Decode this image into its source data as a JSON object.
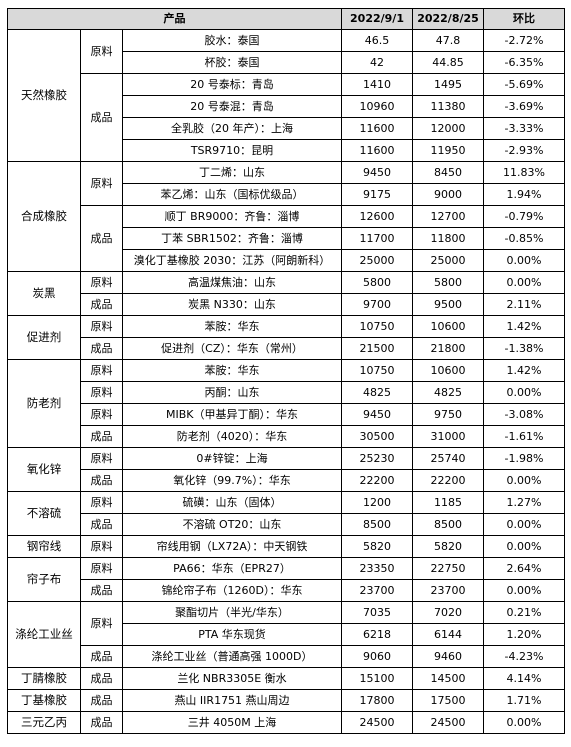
{
  "headers": [
    "产品",
    "2022/9/1",
    "2022/8/25",
    "环比"
  ],
  "groups": [
    {
      "category": "天然橡胶",
      "subs": [
        {
          "type": "原料",
          "rows": [
            {
              "name": "胶水：泰国",
              "v1": "46.5",
              "v2": "47.8",
              "chg": "-2.72%"
            },
            {
              "name": "杯胶：泰国",
              "v1": "42",
              "v2": "44.85",
              "chg": "-6.35%"
            }
          ]
        },
        {
          "type": "成品",
          "rows": [
            {
              "name": "20 号泰标：青岛",
              "v1": "1410",
              "v2": "1495",
              "chg": "-5.69%"
            },
            {
              "name": "20 号泰混：青岛",
              "v1": "10960",
              "v2": "11380",
              "chg": "-3.69%"
            },
            {
              "name": "全乳胶（20 年产）：上海",
              "v1": "11600",
              "v2": "12000",
              "chg": "-3.33%"
            },
            {
              "name": "TSR9710：昆明",
              "v1": "11600",
              "v2": "11950",
              "chg": "-2.93%"
            }
          ]
        }
      ]
    },
    {
      "category": "合成橡胶",
      "subs": [
        {
          "type": "原料",
          "rows": [
            {
              "name": "丁二烯：山东",
              "v1": "9450",
              "v2": "8450",
              "chg": "11.83%"
            },
            {
              "name": "苯乙烯：山东（国标优级品）",
              "v1": "9175",
              "v2": "9000",
              "chg": "1.94%"
            }
          ]
        },
        {
          "type": "成品",
          "rows": [
            {
              "name": "顺丁 BR9000：齐鲁：淄博",
              "v1": "12600",
              "v2": "12700",
              "chg": "-0.79%"
            },
            {
              "name": "丁苯 SBR1502：齐鲁：淄博",
              "v1": "11700",
              "v2": "11800",
              "chg": "-0.85%"
            },
            {
              "name": "溴化丁基橡胶 2030：江苏（阿朗新科）",
              "v1": "25000",
              "v2": "25000",
              "chg": "0.00%"
            }
          ]
        }
      ]
    },
    {
      "category": "炭黑",
      "subs": [
        {
          "type": "原料",
          "rows": [
            {
              "name": "高温煤焦油：山东",
              "v1": "5800",
              "v2": "5800",
              "chg": "0.00%"
            }
          ]
        },
        {
          "type": "成品",
          "rows": [
            {
              "name": "炭黑 N330：山东",
              "v1": "9700",
              "v2": "9500",
              "chg": "2.11%"
            }
          ]
        }
      ]
    },
    {
      "category": "促进剂",
      "subs": [
        {
          "type": "原料",
          "rows": [
            {
              "name": "苯胺：华东",
              "v1": "10750",
              "v2": "10600",
              "chg": "1.42%"
            }
          ]
        },
        {
          "type": "成品",
          "rows": [
            {
              "name": "促进剂（CZ）：华东（常州）",
              "v1": "21500",
              "v2": "21800",
              "chg": "-1.38%"
            }
          ]
        }
      ]
    },
    {
      "category": "防老剂",
      "subs": [
        {
          "type": "原料",
          "rows": [
            {
              "name": "苯胺：华东",
              "v1": "10750",
              "v2": "10600",
              "chg": "1.42%"
            }
          ]
        },
        {
          "type": "原料",
          "rows": [
            {
              "name": "丙酮：山东",
              "v1": "4825",
              "v2": "4825",
              "chg": "0.00%"
            }
          ]
        },
        {
          "type": "原料",
          "rows": [
            {
              "name": "MIBK（甲基异丁酮）：华东",
              "v1": "9450",
              "v2": "9750",
              "chg": "-3.08%"
            }
          ]
        },
        {
          "type": "成品",
          "rows": [
            {
              "name": "防老剂（4020）：华东",
              "v1": "30500",
              "v2": "31000",
              "chg": "-1.61%"
            }
          ]
        }
      ]
    },
    {
      "category": "氧化锌",
      "subs": [
        {
          "type": "原料",
          "rows": [
            {
              "name": "0#锌锭：上海",
              "v1": "25230",
              "v2": "25740",
              "chg": "-1.98%"
            }
          ]
        },
        {
          "type": "成品",
          "rows": [
            {
              "name": "氧化锌（99.7%）：华东",
              "v1": "22200",
              "v2": "22200",
              "chg": "0.00%"
            }
          ]
        }
      ]
    },
    {
      "category": "不溶硫",
      "subs": [
        {
          "type": "原料",
          "rows": [
            {
              "name": "硫磺：山东（固体）",
              "v1": "1200",
              "v2": "1185",
              "chg": "1.27%"
            }
          ]
        },
        {
          "type": "成品",
          "rows": [
            {
              "name": "不溶硫 OT20：山东",
              "v1": "8500",
              "v2": "8500",
              "chg": "0.00%"
            }
          ]
        }
      ]
    },
    {
      "category": "钢帘线",
      "subs": [
        {
          "type": "原料",
          "rows": [
            {
              "name": "帘线用钢（LX72A）：中天钢铁",
              "v1": "5820",
              "v2": "5820",
              "chg": "0.00%"
            }
          ]
        }
      ]
    },
    {
      "category": "帘子布",
      "subs": [
        {
          "type": "原料",
          "rows": [
            {
              "name": "PA66：华东（EPR27）",
              "v1": "23350",
              "v2": "22750",
              "chg": "2.64%"
            }
          ]
        },
        {
          "type": "成品",
          "rows": [
            {
              "name": "锦纶帘子布（1260D）：华东",
              "v1": "23700",
              "v2": "23700",
              "chg": "0.00%"
            }
          ]
        }
      ]
    },
    {
      "category": "涤纶工业丝",
      "subs": [
        {
          "type": "原料",
          "rows": [
            {
              "name": "聚酯切片（半光/华东）",
              "v1": "7035",
              "v2": "7020",
              "chg": "0.21%"
            },
            {
              "name": "PTA 华东现货",
              "v1": "6218",
              "v2": "6144",
              "chg": "1.20%"
            }
          ]
        },
        {
          "type": "成品",
          "rows": [
            {
              "name": "涤纶工业丝（普通高强 1000D）",
              "v1": "9060",
              "v2": "9460",
              "chg": "-4.23%"
            }
          ]
        }
      ]
    },
    {
      "category": "丁腈橡胶",
      "subs": [
        {
          "type": "成品",
          "rows": [
            {
              "name": "兰化 NBR3305E 衡水",
              "v1": "15100",
              "v2": "14500",
              "chg": "4.14%"
            }
          ]
        }
      ]
    },
    {
      "category": "丁基橡胶",
      "subs": [
        {
          "type": "成品",
          "rows": [
            {
              "name": "燕山 IIR1751 燕山周边",
              "v1": "17800",
              "v2": "17500",
              "chg": "1.71%"
            }
          ]
        }
      ]
    },
    {
      "category": "三元乙丙",
      "subs": [
        {
          "type": "成品",
          "rows": [
            {
              "name": "三井 4050M 上海",
              "v1": "24500",
              "v2": "24500",
              "chg": "0.00%"
            }
          ]
        }
      ]
    }
  ]
}
